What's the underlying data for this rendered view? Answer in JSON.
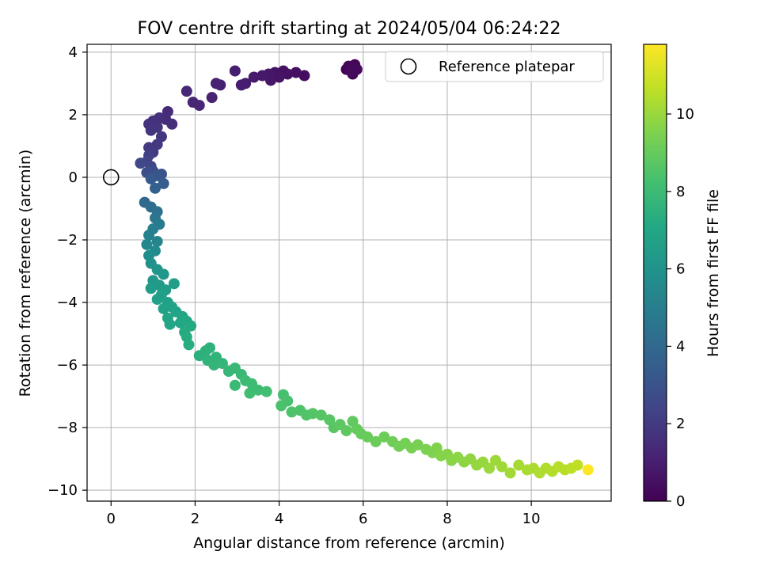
{
  "chart_data": {
    "type": "scatter",
    "title": "FOV centre drift starting at 2024/05/04 06:24:22",
    "xlabel": "Angular distance from reference (arcmin)",
    "ylabel": "Rotation from reference (arcmin)",
    "xlim": [
      -0.57,
      11.9
    ],
    "ylim": [
      -10.35,
      4.25
    ],
    "xticks": [
      0,
      2,
      4,
      6,
      8,
      10
    ],
    "xtick_labels": [
      "0",
      "2",
      "4",
      "6",
      "8",
      "10"
    ],
    "yticks": [
      4,
      2,
      0,
      -2,
      -4,
      -6,
      -8,
      -10
    ],
    "ytick_labels": [
      "4",
      "2",
      "0",
      "−2",
      "−4",
      "−6",
      "−8",
      "−10"
    ],
    "grid": true,
    "legend": {
      "placement": "top-right",
      "entries": [
        "Reference platepar"
      ]
    },
    "reference_point": {
      "x": 0,
      "y": 0
    },
    "colorbar": {
      "label": "Hours from first FF file",
      "colormap": "viridis",
      "range": [
        0,
        11.8
      ],
      "ticks": [
        0,
        2,
        4,
        6,
        8,
        10
      ],
      "tick_labels": [
        "0",
        "2",
        "4",
        "6",
        "8",
        "10"
      ]
    },
    "series": [
      {
        "points": [
          [
            5.7,
            3.5,
            0.0
          ],
          [
            5.6,
            3.45,
            0.05
          ],
          [
            5.75,
            3.3,
            0.1
          ],
          [
            5.8,
            3.6,
            0.15
          ],
          [
            5.65,
            3.55,
            0.2
          ],
          [
            5.85,
            3.45,
            0.25
          ],
          [
            5.7,
            3.4,
            0.3
          ],
          [
            4.6,
            3.25,
            0.4
          ],
          [
            4.4,
            3.35,
            0.45
          ],
          [
            4.2,
            3.3,
            0.5
          ],
          [
            4.1,
            3.4,
            0.55
          ],
          [
            4.0,
            3.2,
            0.6
          ],
          [
            3.9,
            3.35,
            0.65
          ],
          [
            3.8,
            3.1,
            0.7
          ],
          [
            3.75,
            3.3,
            0.75
          ],
          [
            3.6,
            3.25,
            0.8
          ],
          [
            3.4,
            3.2,
            0.85
          ],
          [
            3.2,
            3.0,
            0.9
          ],
          [
            3.1,
            2.95,
            0.95
          ],
          [
            2.95,
            3.4,
            1.0
          ],
          [
            2.6,
            2.95,
            1.05
          ],
          [
            2.5,
            3.0,
            1.1
          ],
          [
            2.4,
            2.55,
            1.15
          ],
          [
            2.1,
            2.3,
            1.2
          ],
          [
            1.95,
            2.4,
            1.25
          ],
          [
            1.8,
            2.75,
            1.3
          ],
          [
            1.35,
            2.1,
            1.45
          ],
          [
            1.3,
            1.85,
            1.5
          ],
          [
            1.45,
            1.7,
            1.55
          ],
          [
            1.15,
            1.9,
            1.6
          ],
          [
            1.0,
            1.8,
            1.65
          ],
          [
            0.9,
            1.7,
            1.7
          ],
          [
            1.1,
            1.6,
            1.75
          ],
          [
            0.95,
            1.5,
            1.8
          ],
          [
            1.2,
            1.3,
            1.85
          ],
          [
            1.1,
            1.05,
            1.9
          ],
          [
            0.9,
            0.95,
            1.95
          ],
          [
            1.0,
            0.8,
            2.0
          ],
          [
            0.9,
            0.7,
            2.2
          ],
          [
            0.85,
            0.5,
            2.35
          ],
          [
            0.95,
            0.35,
            2.5
          ],
          [
            0.7,
            0.45,
            2.6
          ],
          [
            1.0,
            0.2,
            2.75
          ],
          [
            0.85,
            0.15,
            2.85
          ],
          [
            1.2,
            0.1,
            3.0
          ],
          [
            1.1,
            0.05,
            3.15
          ],
          [
            0.95,
            -0.05,
            3.3
          ],
          [
            1.25,
            -0.2,
            3.45
          ],
          [
            1.05,
            -0.35,
            3.6
          ],
          [
            0.8,
            -0.8,
            4.0
          ],
          [
            0.95,
            -0.95,
            4.2
          ],
          [
            1.1,
            -1.1,
            4.4
          ],
          [
            1.05,
            -1.3,
            4.6
          ],
          [
            1.15,
            -1.5,
            4.8
          ],
          [
            1.0,
            -1.65,
            5.0
          ],
          [
            0.9,
            -1.85,
            5.15
          ],
          [
            1.1,
            -2.05,
            5.3
          ],
          [
            0.85,
            -2.15,
            5.45
          ],
          [
            1.05,
            -2.35,
            5.6
          ],
          [
            0.9,
            -2.5,
            5.75
          ],
          [
            0.95,
            -2.75,
            5.9
          ],
          [
            1.1,
            -2.95,
            6.05
          ],
          [
            1.25,
            -3.1,
            6.15
          ],
          [
            1.0,
            -3.3,
            6.25
          ],
          [
            1.15,
            -3.45,
            6.35
          ],
          [
            0.95,
            -3.55,
            6.45
          ],
          [
            1.3,
            -3.6,
            6.5
          ],
          [
            1.5,
            -3.4,
            6.55
          ],
          [
            1.2,
            -3.75,
            6.6
          ],
          [
            1.1,
            -3.9,
            6.65
          ],
          [
            1.35,
            -4.0,
            6.7
          ],
          [
            1.25,
            -4.2,
            6.75
          ],
          [
            1.45,
            -4.15,
            6.8
          ],
          [
            1.55,
            -4.3,
            6.85
          ],
          [
            1.7,
            -4.45,
            6.9
          ],
          [
            1.35,
            -4.5,
            6.95
          ],
          [
            1.4,
            -4.7,
            7.0
          ],
          [
            1.65,
            -4.65,
            7.05
          ],
          [
            1.8,
            -4.6,
            7.1
          ],
          [
            1.9,
            -4.75,
            7.15
          ],
          [
            1.75,
            -4.95,
            7.2
          ],
          [
            1.8,
            -5.1,
            7.25
          ],
          [
            1.85,
            -5.35,
            7.3
          ],
          [
            2.1,
            -5.7,
            7.45
          ],
          [
            2.25,
            -5.55,
            7.5
          ],
          [
            2.35,
            -5.45,
            7.55
          ],
          [
            2.3,
            -5.85,
            7.6
          ],
          [
            2.5,
            -5.75,
            7.65
          ],
          [
            2.45,
            -6.0,
            7.7
          ],
          [
            2.65,
            -5.95,
            7.75
          ],
          [
            2.8,
            -6.2,
            7.8
          ],
          [
            2.95,
            -6.1,
            7.85
          ],
          [
            3.1,
            -6.3,
            7.9
          ],
          [
            2.95,
            -6.65,
            7.95
          ],
          [
            3.2,
            -6.5,
            8.0
          ],
          [
            3.35,
            -6.6,
            8.05
          ],
          [
            3.5,
            -6.8,
            8.1
          ],
          [
            3.3,
            -6.9,
            8.15
          ],
          [
            3.7,
            -6.85,
            8.2
          ],
          [
            4.1,
            -6.95,
            8.3
          ],
          [
            4.2,
            -7.15,
            8.35
          ],
          [
            4.05,
            -7.3,
            8.4
          ],
          [
            4.3,
            -7.5,
            8.45
          ],
          [
            4.5,
            -7.45,
            8.5
          ],
          [
            4.65,
            -7.6,
            8.55
          ],
          [
            4.8,
            -7.55,
            8.6
          ],
          [
            5.0,
            -7.6,
            8.65
          ],
          [
            5.2,
            -7.75,
            8.7
          ],
          [
            5.3,
            -8.0,
            8.75
          ],
          [
            5.45,
            -7.9,
            8.8
          ],
          [
            5.6,
            -8.1,
            8.85
          ],
          [
            5.75,
            -7.8,
            8.9
          ],
          [
            5.85,
            -8.05,
            8.95
          ],
          [
            5.95,
            -8.2,
            9.0
          ],
          [
            6.1,
            -8.3,
            9.05
          ],
          [
            6.3,
            -8.45,
            9.1
          ],
          [
            6.5,
            -8.3,
            9.15
          ],
          [
            6.7,
            -8.45,
            9.2
          ],
          [
            6.85,
            -8.6,
            9.25
          ],
          [
            7.0,
            -8.5,
            9.3
          ],
          [
            7.15,
            -8.65,
            9.35
          ],
          [
            7.3,
            -8.55,
            9.4
          ],
          [
            7.5,
            -8.7,
            9.45
          ],
          [
            7.65,
            -8.8,
            9.5
          ],
          [
            7.75,
            -8.65,
            9.55
          ],
          [
            7.85,
            -8.9,
            9.6
          ],
          [
            8.0,
            -8.85,
            9.65
          ],
          [
            8.1,
            -9.05,
            9.7
          ],
          [
            8.25,
            -8.95,
            9.75
          ],
          [
            8.4,
            -9.1,
            9.8
          ],
          [
            8.55,
            -9.0,
            9.85
          ],
          [
            8.7,
            -9.2,
            9.9
          ],
          [
            8.85,
            -9.1,
            9.95
          ],
          [
            9.0,
            -9.3,
            10.0
          ],
          [
            9.15,
            -9.05,
            10.05
          ],
          [
            9.3,
            -9.25,
            10.1
          ],
          [
            9.5,
            -9.45,
            10.15
          ],
          [
            9.7,
            -9.2,
            10.2
          ],
          [
            9.9,
            -9.35,
            10.25
          ],
          [
            10.05,
            -9.3,
            10.3
          ],
          [
            10.2,
            -9.45,
            10.35
          ],
          [
            10.35,
            -9.3,
            10.4
          ],
          [
            10.5,
            -9.4,
            10.45
          ],
          [
            10.65,
            -9.25,
            10.5
          ],
          [
            10.8,
            -9.35,
            10.55
          ],
          [
            10.95,
            -9.3,
            10.6
          ],
          [
            11.1,
            -9.2,
            10.65
          ],
          [
            11.35,
            -9.35,
            11.8
          ]
        ]
      }
    ]
  }
}
